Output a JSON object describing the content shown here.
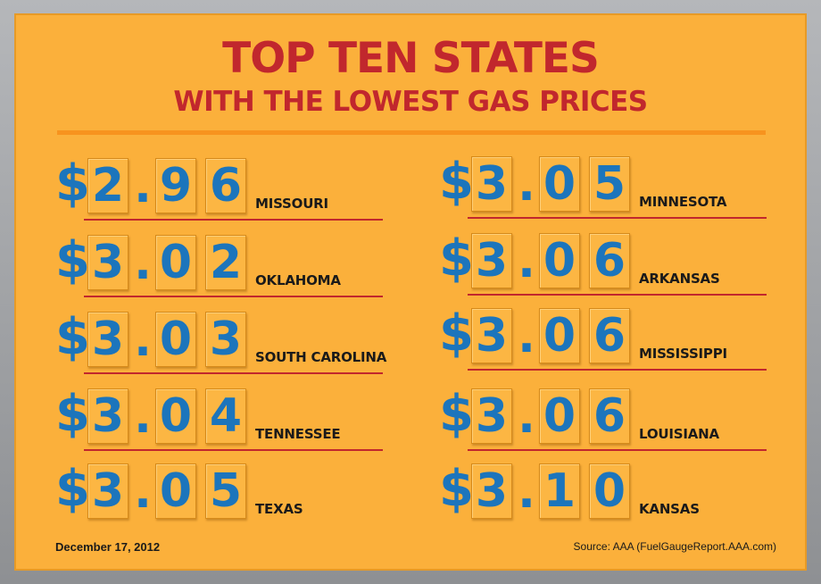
{
  "title": "TOP TEN STATES",
  "subtitle": "WITH THE LOWEST GAS PRICES",
  "left_column": [
    {
      "dollar": "$",
      "d1": "2",
      "dot": ".",
      "d2": "9",
      "d3": "6",
      "state": "MISSOURI"
    },
    {
      "dollar": "$",
      "d1": "3",
      "dot": ".",
      "d2": "0",
      "d3": "2",
      "state": "OKLAHOMA"
    },
    {
      "dollar": "$",
      "d1": "3",
      "dot": ".",
      "d2": "0",
      "d3": "3",
      "state": "SOUTH CAROLINA"
    },
    {
      "dollar": "$",
      "d1": "3",
      "dot": ".",
      "d2": "0",
      "d3": "4",
      "state": "TENNESSEE"
    },
    {
      "dollar": "$",
      "d1": "3",
      "dot": ".",
      "d2": "0",
      "d3": "5",
      "state": "TEXAS"
    }
  ],
  "right_column": [
    {
      "dollar": "$",
      "d1": "3",
      "dot": ".",
      "d2": "0",
      "d3": "5",
      "state": "MINNESOTA"
    },
    {
      "dollar": "$",
      "d1": "3",
      "dot": ".",
      "d2": "0",
      "d3": "6",
      "state": "ARKANSAS"
    },
    {
      "dollar": "$",
      "d1": "3",
      "dot": ".",
      "d2": "0",
      "d3": "6",
      "state": "MISSISSIPPI"
    },
    {
      "dollar": "$",
      "d1": "3",
      "dot": ".",
      "d2": "0",
      "d3": "6",
      "state": "LOUISIANA"
    },
    {
      "dollar": "$",
      "d1": "3",
      "dot": ".",
      "d2": "1",
      "d3": "0",
      "state": "KANSAS"
    }
  ],
  "footer": {
    "date": "December 17, 2012",
    "source": "Source: AAA (FuelGaugeReport.AAA.com)"
  },
  "colors": {
    "board": "#fbb03b",
    "title": "#c1272d",
    "digits": "#1c75bc",
    "underline": "#c1272d"
  }
}
